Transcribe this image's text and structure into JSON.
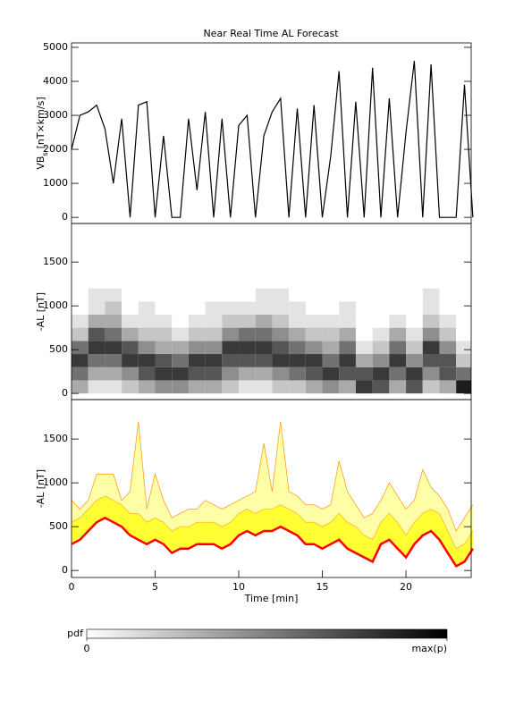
{
  "chart_data": [
    {
      "type": "line",
      "title": "Near Real Time AL Forecast",
      "ylabel": {
        "main": "VB",
        "sub": "s",
        "unit": "[nT×km/s]"
      },
      "color": "#000000",
      "x": [
        0,
        0.5,
        1,
        1.5,
        2,
        2.5,
        3,
        3.5,
        4,
        4.5,
        5,
        5.5,
        6,
        6.5,
        7,
        7.5,
        8,
        8.5,
        9,
        9.5,
        10,
        10.5,
        11,
        11.5,
        12,
        12.5,
        13,
        13.5,
        14,
        14.5,
        15,
        15.5,
        16,
        16.5,
        17,
        17.5,
        18,
        18.5,
        19,
        19.5,
        20,
        20.5,
        21,
        21.5,
        22,
        22.5,
        23,
        23.5,
        24
      ],
      "values": [
        2000,
        3000,
        3100,
        3300,
        2600,
        1000,
        2900,
        0,
        3300,
        3400,
        0,
        2400,
        0,
        0,
        2900,
        800,
        3100,
        0,
        2900,
        0,
        2700,
        3000,
        0,
        2400,
        3100,
        3500,
        0,
        3200,
        0,
        3300,
        0,
        1800,
        4300,
        0,
        3400,
        0,
        4400,
        0,
        3500,
        0,
        2500,
        4600,
        0,
        4500,
        0,
        0,
        0,
        3900,
        0
      ],
      "xlim": [
        0,
        23.9
      ],
      "ylim": [
        -180,
        5130
      ],
      "yticks": [
        0,
        1000,
        2000,
        3000,
        4000,
        5000
      ]
    },
    {
      "type": "heatmap",
      "ylabel": "-AL [nT]",
      "x_bins": [
        0,
        1,
        2,
        3,
        4,
        5,
        6,
        7,
        8,
        9,
        10,
        11,
        12,
        13,
        14,
        15,
        16,
        17,
        18,
        19,
        20,
        21,
        22,
        23,
        24
      ],
      "y_bins": [
        0,
        150,
        300,
        450,
        600,
        750,
        900,
        1050,
        1200
      ],
      "pdf": [
        [
          3,
          5,
          7,
          5,
          2,
          1,
          0,
          0
        ],
        [
          1,
          3,
          5,
          7,
          6,
          3,
          1,
          1
        ],
        [
          1,
          3,
          5,
          7,
          5,
          3,
          2,
          1
        ],
        [
          2,
          4,
          7,
          6,
          3,
          1,
          0,
          0
        ],
        [
          3,
          6,
          7,
          4,
          2,
          1,
          1,
          0
        ],
        [
          4,
          7,
          6,
          3,
          2,
          1,
          0,
          0
        ],
        [
          4,
          7,
          5,
          3,
          1,
          0,
          0,
          0
        ],
        [
          3,
          6,
          7,
          4,
          2,
          1,
          0,
          0
        ],
        [
          3,
          6,
          7,
          4,
          2,
          1,
          1,
          0
        ],
        [
          2,
          4,
          6,
          7,
          4,
          2,
          1,
          0
        ],
        [
          1,
          3,
          6,
          7,
          5,
          2,
          1,
          0
        ],
        [
          1,
          3,
          6,
          7,
          5,
          3,
          1,
          1
        ],
        [
          2,
          4,
          7,
          6,
          4,
          2,
          1,
          1
        ],
        [
          2,
          5,
          7,
          5,
          3,
          1,
          1,
          0
        ],
        [
          3,
          6,
          7,
          4,
          2,
          1,
          0,
          0
        ],
        [
          4,
          7,
          5,
          3,
          2,
          1,
          0,
          0
        ],
        [
          3,
          6,
          7,
          5,
          3,
          1,
          1,
          0
        ],
        [
          7,
          6,
          3,
          1,
          0,
          0,
          0,
          0
        ],
        [
          6,
          7,
          4,
          2,
          1,
          0,
          0,
          0
        ],
        [
          3,
          5,
          7,
          5,
          3,
          1,
          0,
          0
        ],
        [
          6,
          7,
          4,
          2,
          1,
          0,
          0,
          0
        ],
        [
          2,
          4,
          6,
          7,
          4,
          2,
          1,
          1
        ],
        [
          3,
          6,
          6,
          4,
          2,
          1,
          0,
          0
        ],
        [
          8,
          5,
          2,
          1,
          0,
          0,
          0,
          0
        ]
      ],
      "clim": [
        0,
        9
      ],
      "colorbar_label": "pdf",
      "colorbar_ticks": [
        0,
        {
          "value": 9,
          "label": "max(p)"
        }
      ],
      "xlim": [
        0,
        23.9
      ],
      "ylim": [
        -70,
        1940
      ],
      "yticks": [
        0,
        500,
        1000,
        1500
      ]
    },
    {
      "type": "band",
      "ylabel": "-AL [nT]",
      "xlabel": "Time [min]",
      "x": [
        0,
        0.5,
        1,
        1.5,
        2,
        2.5,
        3,
        3.5,
        4,
        4.5,
        5,
        5.5,
        6,
        6.5,
        7,
        7.5,
        8,
        8.5,
        9,
        9.5,
        10,
        10.5,
        11,
        11.5,
        12,
        12.5,
        13,
        13.5,
        14,
        14.5,
        15,
        15.5,
        16,
        16.5,
        17,
        17.5,
        18,
        18.5,
        19,
        19.5,
        20,
        20.5,
        21,
        21.5,
        22,
        22.5,
        23,
        23.5,
        24
      ],
      "line": {
        "color": "#ff0000",
        "values": [
          300,
          350,
          450,
          550,
          600,
          550,
          500,
          400,
          350,
          300,
          350,
          300,
          200,
          250,
          250,
          300,
          300,
          300,
          250,
          300,
          400,
          450,
          400,
          450,
          450,
          500,
          450,
          400,
          300,
          300,
          250,
          300,
          350,
          250,
          200,
          150,
          100,
          300,
          350,
          250,
          150,
          300,
          400,
          450,
          350,
          200,
          50,
          100,
          250
        ]
      },
      "band_high": {
        "color": "#ffff33",
        "values": [
          550,
          600,
          700,
          800,
          850,
          800,
          750,
          650,
          650,
          550,
          600,
          550,
          450,
          500,
          500,
          550,
          550,
          550,
          500,
          550,
          650,
          700,
          650,
          700,
          700,
          750,
          700,
          650,
          550,
          550,
          500,
          550,
          650,
          550,
          500,
          400,
          350,
          550,
          650,
          550,
          400,
          550,
          650,
          700,
          650,
          450,
          250,
          300,
          450
        ]
      },
      "envelope": {
        "color": "#ffa020",
        "fill": "#ffffa8",
        "values": [
          800,
          700,
          800,
          1100,
          1100,
          1100,
          800,
          900,
          1700,
          700,
          1100,
          800,
          600,
          650,
          700,
          700,
          800,
          750,
          700,
          750,
          800,
          850,
          900,
          1450,
          900,
          1700,
          900,
          850,
          750,
          750,
          700,
          750,
          1250,
          900,
          750,
          600,
          650,
          800,
          1000,
          850,
          700,
          800,
          1150,
          950,
          850,
          700,
          450,
          600,
          750
        ]
      },
      "xlim": [
        0,
        23.9
      ],
      "ylim": [
        -80,
        1950
      ],
      "yticks": [
        0,
        500,
        1000,
        1500
      ],
      "xticks": [
        0,
        5,
        10,
        15,
        20
      ]
    }
  ]
}
